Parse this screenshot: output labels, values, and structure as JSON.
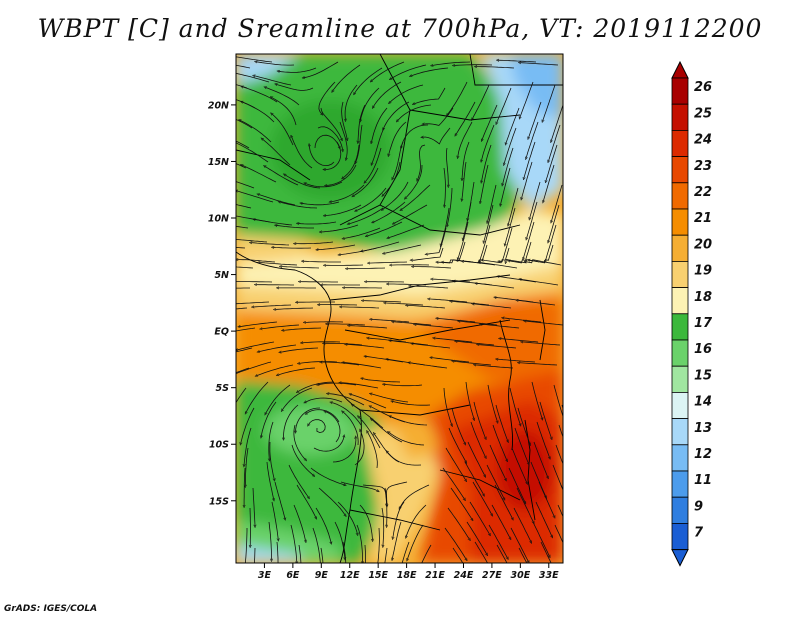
{
  "title": "WBPT [C] and Sreamline at 700hPa, VT: 2019112200",
  "credit": "GrADS: IGES/COLA",
  "map": {
    "lat_range": [
      -20.5,
      24.5
    ],
    "lon_range": [
      0,
      34.5
    ],
    "lat_ticks": [
      {
        "value": 20,
        "label": "20N"
      },
      {
        "value": 15,
        "label": "15N"
      },
      {
        "value": 10,
        "label": "10N"
      },
      {
        "value": 5,
        "label": "5N"
      },
      {
        "value": 0,
        "label": "EQ"
      },
      {
        "value": -5,
        "label": "5S"
      },
      {
        "value": -10,
        "label": "10S"
      },
      {
        "value": -15,
        "label": "15S"
      }
    ],
    "lon_ticks": [
      {
        "value": 3,
        "label": "3E"
      },
      {
        "value": 6,
        "label": "6E"
      },
      {
        "value": 9,
        "label": "9E"
      },
      {
        "value": 12,
        "label": "12E"
      },
      {
        "value": 15,
        "label": "15E"
      },
      {
        "value": 18,
        "label": "18E"
      },
      {
        "value": 21,
        "label": "21E"
      },
      {
        "value": 24,
        "label": "24E"
      },
      {
        "value": 27,
        "label": "27E"
      },
      {
        "value": 30,
        "label": "30E"
      },
      {
        "value": 33,
        "label": "33E"
      }
    ],
    "field": "wet-bulb potential temperature",
    "overlay": "streamlines",
    "colorbar": {
      "levels": [
        "26",
        "25",
        "24",
        "23",
        "22",
        "21",
        "20",
        "19",
        "18",
        "17",
        "16",
        "15",
        "14",
        "13",
        "12",
        "11",
        "9",
        "7"
      ],
      "colors": [
        "#a80000",
        "#c41000",
        "#dc2a00",
        "#e84800",
        "#f06a00",
        "#f58d00",
        "#f5ae33",
        "#f8d070",
        "#fdf2b4",
        "#3cb83c",
        "#6ad26a",
        "#a0e6a0",
        "#dcf4f4",
        "#a8d8f8",
        "#78bcf4",
        "#4c9cec",
        "#2f7ee0",
        "#1a5ed4"
      ]
    }
  }
}
